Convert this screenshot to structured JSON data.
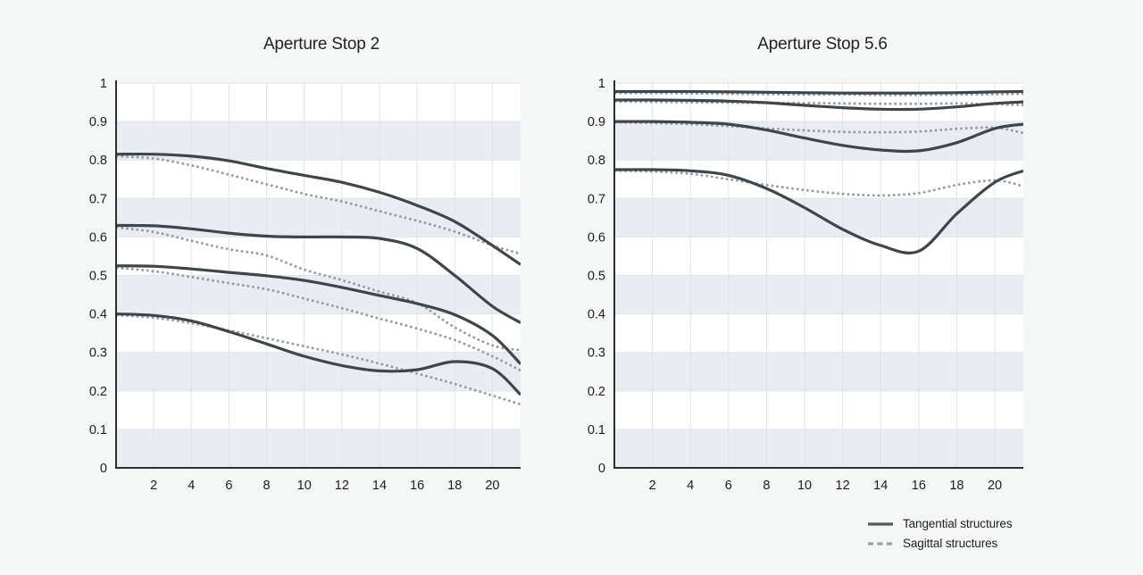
{
  "page": {
    "background": "#f5f6f6"
  },
  "colors": {
    "tangential": "#3e464c",
    "sagittal": "#8f969c",
    "legend_tangential": "#5c5754",
    "legend_sagittal": "#9aa0a4",
    "band": "#e9edf2",
    "grid": "#e0e3e6",
    "axis": "#2e2e2e",
    "plot_bg": "#ffffff",
    "tick_text": "#1d1d1f",
    "title_text": "#272123"
  },
  "legend": {
    "items": [
      {
        "label": "Tangential structures",
        "style": "solid"
      },
      {
        "label": "Sagittal structures",
        "style": "dashed"
      }
    ]
  },
  "chart_data": [
    {
      "type": "line",
      "title": "Aperture Stop 2",
      "xlim": [
        0,
        21.5
      ],
      "ylim": [
        0,
        1
      ],
      "x_ticks": [
        2,
        4,
        6,
        8,
        10,
        12,
        14,
        16,
        18,
        20
      ],
      "y_ticks": [
        0,
        0.1,
        0.2,
        0.3,
        0.4,
        0.5,
        0.6,
        0.7,
        0.8,
        0.9,
        1
      ],
      "y_tick_labels": [
        "0",
        "0.1",
        "0.2",
        "0.3",
        "0.4",
        "0.5",
        "0.6",
        "0.7",
        "0.8",
        "0.9",
        "1"
      ],
      "shaded_bands": [
        [
          0,
          0.1
        ],
        [
          0.2,
          0.3
        ],
        [
          0.4,
          0.5
        ],
        [
          0.6,
          0.7
        ],
        [
          0.8,
          0.9
        ]
      ],
      "x": [
        0,
        2,
        4,
        6,
        8,
        10,
        12,
        14,
        16,
        18,
        20,
        21.5
      ],
      "series": [
        {
          "name": "tangential-1",
          "style": "solid",
          "values": [
            0.815,
            0.815,
            0.81,
            0.798,
            0.778,
            0.76,
            0.742,
            0.716,
            0.682,
            0.64,
            0.578,
            0.528
          ]
        },
        {
          "name": "sagittal-1",
          "style": "dotted",
          "values": [
            0.81,
            0.804,
            0.786,
            0.762,
            0.737,
            0.712,
            0.692,
            0.667,
            0.642,
            0.614,
            0.578,
            0.556
          ]
        },
        {
          "name": "tangential-2",
          "style": "solid",
          "values": [
            0.63,
            0.629,
            0.621,
            0.61,
            0.602,
            0.6,
            0.6,
            0.596,
            0.57,
            0.5,
            0.42,
            0.377
          ]
        },
        {
          "name": "sagittal-2",
          "style": "dotted",
          "values": [
            0.625,
            0.613,
            0.59,
            0.568,
            0.552,
            0.515,
            0.488,
            0.458,
            0.428,
            0.365,
            0.318,
            0.306
          ]
        },
        {
          "name": "tangential-3",
          "style": "solid",
          "values": [
            0.525,
            0.524,
            0.517,
            0.508,
            0.499,
            0.487,
            0.469,
            0.448,
            0.427,
            0.398,
            0.344,
            0.27
          ]
        },
        {
          "name": "sagittal-3",
          "style": "dotted",
          "values": [
            0.52,
            0.511,
            0.496,
            0.48,
            0.464,
            0.44,
            0.415,
            0.388,
            0.362,
            0.332,
            0.29,
            0.253
          ]
        },
        {
          "name": "tangential-4",
          "style": "solid",
          "values": [
            0.4,
            0.396,
            0.382,
            0.354,
            0.322,
            0.29,
            0.266,
            0.252,
            0.255,
            0.276,
            0.258,
            0.19
          ]
        },
        {
          "name": "sagittal-4",
          "style": "dotted",
          "values": [
            0.397,
            0.39,
            0.376,
            0.357,
            0.337,
            0.316,
            0.295,
            0.271,
            0.245,
            0.218,
            0.188,
            0.165
          ]
        }
      ]
    },
    {
      "type": "line",
      "title": "Aperture Stop 5.6",
      "xlim": [
        0,
        21.5
      ],
      "ylim": [
        0,
        1
      ],
      "x_ticks": [
        2,
        4,
        6,
        8,
        10,
        12,
        14,
        16,
        18,
        20
      ],
      "y_ticks": [
        0,
        0.1,
        0.2,
        0.3,
        0.4,
        0.5,
        0.6,
        0.7,
        0.8,
        0.9,
        1
      ],
      "y_tick_labels": [
        "0",
        "0.1",
        "0.2",
        "0.3",
        "0.4",
        "0.5",
        "0.6",
        "0.7",
        "0.8",
        "0.9",
        "1"
      ],
      "shaded_bands": [
        [
          0,
          0.1
        ],
        [
          0.2,
          0.3
        ],
        [
          0.4,
          0.5
        ],
        [
          0.6,
          0.7
        ],
        [
          0.8,
          0.9
        ]
      ],
      "x": [
        0,
        2,
        4,
        6,
        8,
        10,
        12,
        14,
        16,
        18,
        20,
        21.5
      ],
      "series": [
        {
          "name": "tangential-1",
          "style": "solid",
          "values": [
            0.978,
            0.978,
            0.978,
            0.977,
            0.976,
            0.975,
            0.974,
            0.974,
            0.974,
            0.975,
            0.977,
            0.978
          ]
        },
        {
          "name": "sagittal-1",
          "style": "dotted",
          "values": [
            0.974,
            0.974,
            0.973,
            0.972,
            0.971,
            0.97,
            0.97,
            0.969,
            0.969,
            0.97,
            0.971,
            0.972
          ]
        },
        {
          "name": "tangential-2",
          "style": "solid",
          "values": [
            0.956,
            0.956,
            0.955,
            0.953,
            0.949,
            0.942,
            0.936,
            0.932,
            0.932,
            0.938,
            0.947,
            0.951
          ]
        },
        {
          "name": "sagittal-2",
          "style": "dotted",
          "values": [
            0.952,
            0.951,
            0.95,
            0.949,
            0.948,
            0.948,
            0.947,
            0.946,
            0.946,
            0.947,
            0.945,
            0.943
          ]
        },
        {
          "name": "tangential-3",
          "style": "solid",
          "values": [
            0.9,
            0.9,
            0.898,
            0.893,
            0.878,
            0.857,
            0.838,
            0.826,
            0.824,
            0.845,
            0.882,
            0.893
          ]
        },
        {
          "name": "sagittal-3",
          "style": "dotted",
          "values": [
            0.898,
            0.896,
            0.893,
            0.888,
            0.882,
            0.877,
            0.873,
            0.872,
            0.874,
            0.881,
            0.884,
            0.87
          ]
        },
        {
          "name": "tangential-4",
          "style": "solid",
          "values": [
            0.775,
            0.775,
            0.772,
            0.76,
            0.726,
            0.676,
            0.62,
            0.578,
            0.563,
            0.66,
            0.742,
            0.772
          ]
        },
        {
          "name": "sagittal-4",
          "style": "dotted",
          "values": [
            0.772,
            0.77,
            0.764,
            0.75,
            0.735,
            0.722,
            0.712,
            0.708,
            0.714,
            0.735,
            0.747,
            0.732
          ]
        }
      ]
    }
  ]
}
